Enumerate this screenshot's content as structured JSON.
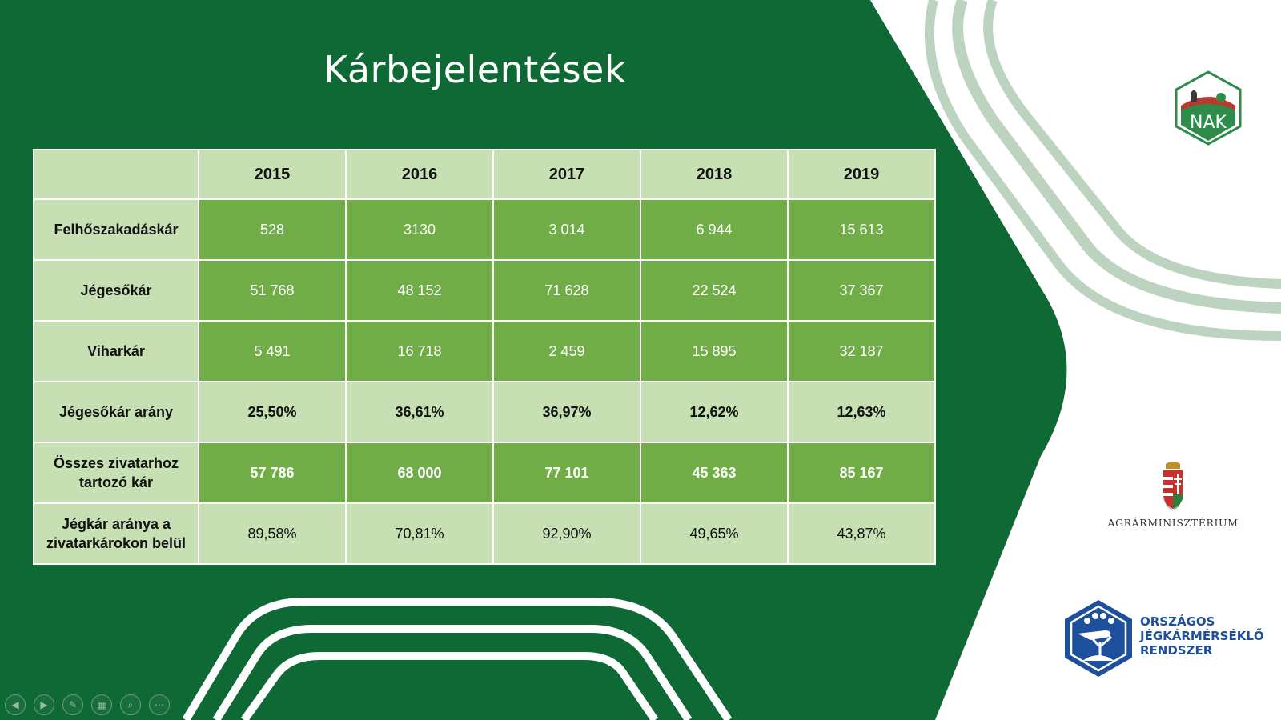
{
  "slide": {
    "title": "Kárbejelentések"
  },
  "table": {
    "header": [
      "",
      "2015",
      "2016",
      "2017",
      "2018",
      "2019"
    ],
    "rows": [
      {
        "label": "Felhőszakadáskár",
        "values": [
          "528",
          "3130",
          "3 014",
          "6 944",
          "15 613"
        ]
      },
      {
        "label": "Jégesőkár",
        "values": [
          "51 768",
          "48 152",
          "71 628",
          "22 524",
          "37 367"
        ]
      },
      {
        "label": "Viharkár",
        "values": [
          "5 491",
          "16 718",
          "2 459",
          "15 895",
          "32 187"
        ]
      },
      {
        "label": "Jégesőkár arány",
        "values": [
          "25,50%",
          "36,61%",
          "36,97%",
          "12,62%",
          "12,63%"
        ]
      },
      {
        "label": "Összes zivatarhoz tartozó kár",
        "values": [
          "57 786",
          "68 000",
          "77 101",
          "45 363",
          "85 167"
        ]
      },
      {
        "label": "Jégkár aránya a zivatarkárokon belül",
        "values": [
          "89,58%",
          "70,81%",
          "92,90%",
          "49,65%",
          "43,87%"
        ]
      }
    ]
  },
  "logos": {
    "nak_text": "NAK",
    "ministry_name": "AGRÁRMINISZTÉRIUM",
    "ojr_line1": "ORSZÁGOS",
    "ojr_line2": "JÉGKÁRMÉRSÉKLŐ",
    "ojr_line3": "RENDSZER"
  },
  "controls": [
    {
      "icon": "previous-icon",
      "glyph": "◀"
    },
    {
      "icon": "next-icon",
      "glyph": "▶"
    },
    {
      "icon": "pen-icon",
      "glyph": "✎"
    },
    {
      "icon": "slides-grid-icon",
      "glyph": "▦"
    },
    {
      "icon": "zoom-icon",
      "glyph": "⌕"
    },
    {
      "icon": "more-icon",
      "glyph": "⋯"
    }
  ],
  "colors": {
    "background_dark_green": "#0f6935",
    "cell_green": "#70ad47",
    "cell_light": "#c6e0b4",
    "ojr_blue": "#1e4f9c"
  }
}
